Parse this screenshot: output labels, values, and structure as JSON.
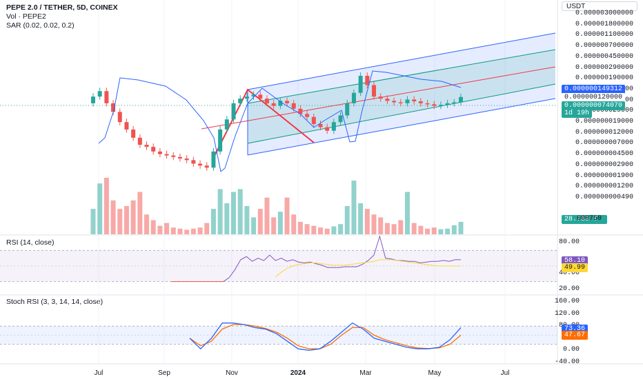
{
  "header": {
    "symbol": "PEPE 2.0 / TETHER, 5D, COINEX",
    "volume_label": "Vol · PEPE2",
    "sar_label": "SAR (0.02, 0.02, 0.2)",
    "currency": "USDT"
  },
  "price_axis": {
    "labels": [
      "0.000003000000",
      "0.000001800000",
      "0.000001100000",
      "0.000000700000",
      "0.000000450000",
      "0.000000290000",
      "0.000000190000",
      "0.000000120000",
      "0.000000045000",
      "0.000000029000",
      "0.000000019000",
      "0.000000012000",
      "0.000000007000",
      "0.000000004500",
      "0.000000002900",
      "0.000000001900",
      "0.000000001200",
      "0.000000000490"
    ]
  },
  "badges": {
    "sar_value": "0.000000149312",
    "sar_value2": "0.000000120000",
    "last_price": "0.000000074070",
    "countdown": "1d 19h",
    "volume": "28.789 T",
    "volume_tail": "000750",
    "rsi": "58.10",
    "rsi_ma": "49.99",
    "stoch_k": "73.36",
    "stoch_d": "47.67"
  },
  "colors": {
    "up": "#26a69a",
    "down": "#ef5350",
    "sar": "#2962ff",
    "rsi": "#7e57c2",
    "rsi_ma": "#fdd835",
    "stoch_k": "#2962ff",
    "stoch_d": "#ff6d00",
    "channel_outer": "#2962ff",
    "channel_inner": "#089981",
    "channel_mid": "#f23645"
  },
  "rsi_panel": {
    "title": "RSI (14, close)",
    "ticks": [
      "80.00",
      "40.00",
      "20.00"
    ]
  },
  "stoch_panel": {
    "title": "Stoch RSI (3, 3, 14, 14, close)",
    "ticks": [
      "160.00",
      "120.00",
      "80.00",
      "0.00",
      "-40.00"
    ]
  },
  "x_axis": {
    "labels": [
      {
        "text": "Jul",
        "bold": false
      },
      {
        "text": "Sep",
        "bold": false
      },
      {
        "text": "Nov",
        "bold": false
      },
      {
        "text": "2024",
        "bold": true
      },
      {
        "text": "Mar",
        "bold": false
      },
      {
        "text": "May",
        "bold": false
      },
      {
        "text": "Jul",
        "bold": false
      }
    ]
  },
  "chart_data": {
    "type": "candlestick",
    "title": "PEPE 2.0 / TETHER, 5D, COINEX",
    "price_unit": "USDT (x1e-9)",
    "x_range": [
      "2023-06-20",
      "2024-07-20"
    ],
    "price_scale": "log",
    "ohlc_close": [
      75,
      90,
      60,
      45,
      32,
      25,
      19,
      15,
      14,
      12,
      11,
      10.5,
      10,
      9.5,
      9,
      8,
      7.5,
      7,
      12,
      25,
      35,
      60,
      70,
      75,
      80,
      70,
      60,
      55,
      65,
      60,
      50,
      42,
      38,
      30,
      27,
      24,
      32,
      40,
      60,
      85,
      150,
      110,
      75,
      70,
      65,
      62,
      60,
      68,
      64,
      60,
      58,
      55,
      57,
      60,
      62,
      74
    ],
    "volume_relative": [
      0.45,
      0.9,
      1.0,
      0.6,
      0.45,
      0.5,
      0.6,
      0.75,
      0.35,
      0.25,
      0.15,
      0.2,
      0.12,
      0.1,
      0.08,
      0.1,
      0.12,
      0.2,
      0.45,
      0.8,
      0.55,
      0.75,
      0.8,
      0.5,
      0.3,
      0.45,
      0.65,
      0.3,
      0.4,
      0.65,
      0.35,
      0.22,
      0.18,
      0.15,
      0.12,
      0.1,
      0.14,
      0.18,
      0.5,
      0.95,
      0.55,
      0.45,
      0.35,
      0.3,
      0.2,
      0.18,
      0.25,
      0.75,
      0.2,
      0.15,
      0.1,
      0.12,
      0.09,
      0.1,
      0.16,
      0.22
    ],
    "rsi": {
      "ylim": [
        20,
        80
      ],
      "bands": [
        70,
        30
      ],
      "values": [
        30,
        30,
        30,
        30,
        30,
        30,
        30,
        30,
        30,
        30,
        35,
        45,
        58,
        62,
        56,
        60,
        57,
        64,
        57,
        60,
        56,
        58,
        55,
        54,
        55,
        53,
        51,
        48,
        48,
        48,
        49,
        49,
        49,
        52,
        57,
        64,
        88,
        60,
        59,
        57,
        57,
        56,
        56,
        54,
        55,
        56,
        56,
        57,
        56,
        58,
        58
      ],
      "ma_values": [
        null,
        null,
        null,
        null,
        null,
        null,
        null,
        null,
        null,
        null,
        null,
        null,
        null,
        null,
        null,
        null,
        null,
        null,
        36,
        42,
        47,
        50,
        52,
        53,
        54,
        54,
        53,
        52,
        51,
        51,
        51,
        52,
        53,
        54,
        55,
        56,
        58,
        58,
        58,
        57,
        56,
        55,
        54,
        53,
        52,
        51,
        50,
        50,
        50,
        50,
        50
      ]
    },
    "stoch_rsi": {
      "ylim": [
        -40,
        160
      ],
      "bands": [
        80,
        20
      ],
      "k": [
        40,
        5,
        40,
        90,
        90,
        85,
        75,
        70,
        55,
        30,
        5,
        0,
        5,
        30,
        60,
        90,
        70,
        40,
        30,
        20,
        10,
        5,
        5,
        10,
        35,
        75
      ],
      "d": [
        40,
        15,
        30,
        70,
        85,
        85,
        80,
        72,
        60,
        40,
        15,
        5,
        5,
        20,
        50,
        75,
        75,
        50,
        35,
        25,
        15,
        8,
        6,
        8,
        20,
        50
      ]
    }
  }
}
